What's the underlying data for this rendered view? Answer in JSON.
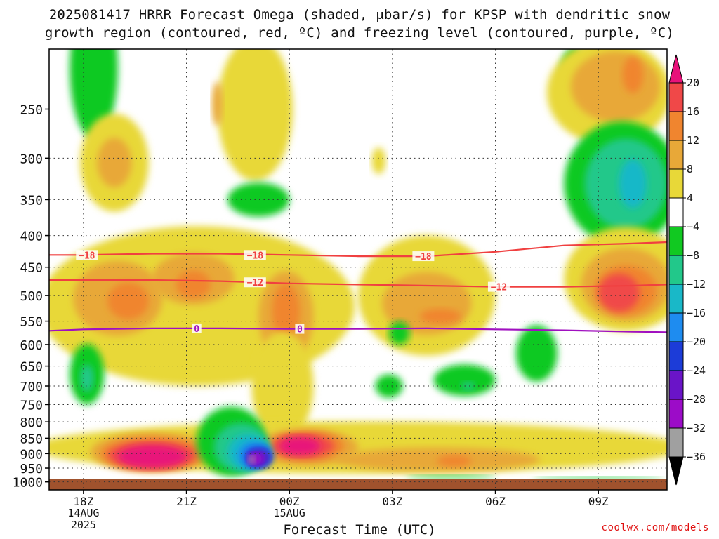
{
  "header": {
    "title_line1": "2025081417 HRRR Forecast Omega (shaded, μbar/s) for KPSP with dendritic snow",
    "title_line2": "growth region (contoured, red, ºC) and freezing level (contoured, purple, ºC)"
  },
  "footer": {
    "credit": "coolwx.com/models"
  },
  "chart_data": {
    "type": "heatmap",
    "title": "2025081417 HRRR Forecast Omega (shaded, μbar/s) for KPSP with dendritic snow growth region (contoured, red, ºC) and freezing level (contoured, purple, ºC)",
    "xlabel": "Forecast Time (UTC)",
    "ylabel": "",
    "x_ticks": [
      {
        "hour": 18,
        "label": "18Z",
        "date": "14AUG",
        "year": "2025"
      },
      {
        "hour": 21,
        "label": "21Z"
      },
      {
        "hour": 24,
        "label": "00Z",
        "date": "15AUG"
      },
      {
        "hour": 27,
        "label": "03Z"
      },
      {
        "hour": 30,
        "label": "06Z"
      },
      {
        "hour": 33,
        "label": "09Z"
      }
    ],
    "xlim": [
      17,
      35
    ],
    "y_ticks": [
      250,
      300,
      350,
      400,
      450,
      500,
      550,
      600,
      650,
      700,
      750,
      800,
      850,
      900,
      950,
      1000
    ],
    "ylim": [
      1030,
      200
    ],
    "y_scale": "log",
    "grid": true,
    "colorbar": {
      "levels": [
        -36,
        -32,
        -28,
        -24,
        -20,
        -16,
        -12,
        -8,
        -4,
        4,
        8,
        12,
        16,
        20
      ],
      "labels": [
        "20",
        "16",
        "12",
        "8",
        "4",
        "−4",
        "−8",
        "−12",
        "−16",
        "−20",
        "−24",
        "−28",
        "−32",
        "−36"
      ],
      "colors": {
        "above_20": "#e8127a",
        "16_20": "#f04848",
        "12_16": "#f0852f",
        "8_12": "#e8a838",
        "4_8": "#e8d838",
        "m4_4": "#ffffff",
        "m8_m4": "#11c921",
        "m12_m8": "#22c88a",
        "m16_m12": "#19b8c8",
        "m20_m16": "#1e8cf0",
        "m24_m20": "#1c3cd8",
        "m28_m24": "#6a14c8",
        "m32_m28": "#9c0cc8",
        "m36_m32": "#a0a0a0",
        "below_m36": "#000000"
      }
    },
    "omega_features": [
      {
        "level": "m8_m4",
        "hour": 18.3,
        "p": 215,
        "rh": 0.7,
        "rp": 55
      },
      {
        "level": "4_8",
        "hour": 18.9,
        "p": 305,
        "rh": 1.0,
        "rp": 55
      },
      {
        "level": "8_12",
        "hour": 18.9,
        "p": 305,
        "rh": 0.5,
        "rp": 28
      },
      {
        "level": "4_8",
        "hour": 23.0,
        "p": 250,
        "rh": 1.1,
        "rp": 65
      },
      {
        "level": "8_12",
        "hour": 21.9,
        "p": 245,
        "rh": 0.15,
        "rp": 20
      },
      {
        "level": "m8_m4",
        "hour": 23.1,
        "p": 350,
        "rh": 0.9,
        "rp": 22
      },
      {
        "level": "m8_m4",
        "hour": 32.3,
        "p": 218,
        "rh": 0.4,
        "rp": 20
      },
      {
        "level": "4_8",
        "hour": 33.3,
        "p": 235,
        "rh": 1.8,
        "rp": 45
      },
      {
        "level": "8_12",
        "hour": 33.5,
        "p": 230,
        "rh": 1.3,
        "rp": 30
      },
      {
        "level": "12_16",
        "hour": 34.0,
        "p": 220,
        "rh": 0.3,
        "rp": 15
      },
      {
        "level": "m8_m4",
        "hour": 33.7,
        "p": 330,
        "rh": 1.7,
        "rp": 75
      },
      {
        "level": "m12_m8",
        "hour": 33.8,
        "p": 330,
        "rh": 1.2,
        "rp": 55
      },
      {
        "level": "m16_m12",
        "hour": 34.0,
        "p": 330,
        "rh": 0.4,
        "rp": 30
      },
      {
        "level": "4_8",
        "hour": 26.6,
        "p": 303,
        "rh": 0.2,
        "rp": 15
      },
      {
        "level": "4_8",
        "hour": 21.3,
        "p": 520,
        "rh": 4.6,
        "rp": 150
      },
      {
        "level": "8_12",
        "hour": 19.0,
        "p": 505,
        "rh": 1.3,
        "rp": 70
      },
      {
        "level": "12_16",
        "hour": 19.3,
        "p": 510,
        "rh": 0.6,
        "rp": 35
      },
      {
        "level": "8_12",
        "hour": 21.2,
        "p": 470,
        "rh": 1.2,
        "rp": 45
      },
      {
        "level": "12_16",
        "hour": 21.2,
        "p": 480,
        "rh": 0.5,
        "rp": 25
      },
      {
        "level": "8_12",
        "hour": 23.9,
        "p": 540,
        "rh": 0.8,
        "rp": 90
      },
      {
        "level": "12_16",
        "hour": 23.9,
        "p": 530,
        "rh": 0.4,
        "rp": 55
      },
      {
        "level": "4_8",
        "hour": 28.0,
        "p": 500,
        "rh": 2.0,
        "rp": 110
      },
      {
        "level": "8_12",
        "hour": 28.0,
        "p": 515,
        "rh": 1.3,
        "rp": 60
      },
      {
        "level": "12_16",
        "hour": 28.4,
        "p": 540,
        "rh": 0.6,
        "rp": 15
      },
      {
        "level": "4_8",
        "hour": 33.8,
        "p": 470,
        "rh": 1.8,
        "rp": 90
      },
      {
        "level": "8_12",
        "hour": 33.8,
        "p": 480,
        "rh": 1.3,
        "rp": 65
      },
      {
        "level": "12_16",
        "hour": 33.8,
        "p": 490,
        "rh": 0.9,
        "rp": 45
      },
      {
        "level": "16_20",
        "hour": 33.6,
        "p": 495,
        "rh": 0.6,
        "rp": 35
      },
      {
        "level": "m8_m4",
        "hour": 27.2,
        "p": 575,
        "rh": 0.3,
        "rp": 25
      },
      {
        "level": "m8_m4",
        "hour": 26.9,
        "p": 700,
        "rh": 0.4,
        "rp": 30
      },
      {
        "level": "m8_m4",
        "hour": 29.1,
        "p": 685,
        "rh": 0.9,
        "rp": 40
      },
      {
        "level": "m12_m8",
        "hour": 29.2,
        "p": 700,
        "rh": 0.2,
        "rp": 10
      },
      {
        "level": "m8_m4",
        "hour": 31.2,
        "p": 620,
        "rh": 0.6,
        "rp": 65
      },
      {
        "level": "m8_m4",
        "hour": 18.1,
        "p": 670,
        "rh": 0.5,
        "rp": 75
      },
      {
        "level": "m12_m8",
        "hour": 18.1,
        "p": 680,
        "rh": 0.2,
        "rp": 35
      },
      {
        "level": "4_8",
        "hour": 23.8,
        "p": 700,
        "rh": 0.9,
        "rp": 140
      },
      {
        "level": "4_8",
        "hour": 26.0,
        "p": 880,
        "rh": 9.5,
        "rp": 85
      },
      {
        "level": "8_12",
        "hour": 20.0,
        "p": 895,
        "rh": 1.8,
        "rp": 65
      },
      {
        "level": "12_16",
        "hour": 20.0,
        "p": 900,
        "rh": 1.5,
        "rp": 55
      },
      {
        "level": "16_20",
        "hour": 20.0,
        "p": 905,
        "rh": 1.3,
        "rp": 45
      },
      {
        "level": "above_20",
        "hour": 20.0,
        "p": 910,
        "rh": 1.0,
        "rp": 38
      },
      {
        "level": "8_12",
        "hour": 24.5,
        "p": 880,
        "rh": 1.5,
        "rp": 60
      },
      {
        "level": "12_16",
        "hour": 24.5,
        "p": 875,
        "rh": 1.1,
        "rp": 48
      },
      {
        "level": "16_20",
        "hour": 24.4,
        "p": 875,
        "rh": 0.9,
        "rp": 38
      },
      {
        "level": "above_20",
        "hour": 24.3,
        "p": 875,
        "rh": 0.6,
        "rp": 30
      },
      {
        "level": "8_12",
        "hour": 28.3,
        "p": 920,
        "rh": 3.0,
        "rp": 40
      },
      {
        "level": "12_16",
        "hour": 28.8,
        "p": 925,
        "rh": 0.5,
        "rp": 20
      },
      {
        "level": "m8_m4",
        "hour": 22.3,
        "p": 860,
        "rh": 1.0,
        "rp": 110
      },
      {
        "level": "m12_m8",
        "hour": 22.6,
        "p": 880,
        "rh": 0.8,
        "rp": 80
      },
      {
        "level": "m16_m12",
        "hour": 22.8,
        "p": 895,
        "rh": 0.6,
        "rp": 60
      },
      {
        "level": "m20_m16",
        "hour": 23.0,
        "p": 905,
        "rh": 0.5,
        "rp": 45
      },
      {
        "level": "m24_m20",
        "hour": 23.1,
        "p": 912,
        "rh": 0.4,
        "rp": 35
      },
      {
        "level": "m28_m24",
        "hour": 23.1,
        "p": 915,
        "rh": 0.3,
        "rp": 27
      },
      {
        "level": "m32_m28",
        "hour": 23.0,
        "p": 918,
        "rh": 0.2,
        "rp": 20
      },
      {
        "level": "m36_m32",
        "hour": 22.9,
        "p": 920,
        "rh": 0.1,
        "rp": 12
      },
      {
        "level": "m8_m4",
        "hour": 28.7,
        "p": 980,
        "rh": 1.3,
        "rp": 6
      },
      {
        "level": "m8_m4",
        "hour": 33.0,
        "p": 985,
        "rh": 1.9,
        "rp": 5
      }
    ],
    "contours": [
      {
        "name": "dendritic",
        "color": "#f04040",
        "label": "−18",
        "x": [
          17,
          18,
          20,
          22,
          24,
          26,
          28,
          30,
          32,
          34,
          35
        ],
        "p": [
          430,
          430,
          428,
          428,
          430,
          432,
          432,
          425,
          415,
          412,
          410
        ]
      },
      {
        "name": "dendritic",
        "color": "#f04040",
        "label": "−12",
        "x": [
          17,
          18,
          20,
          22,
          24,
          26,
          28,
          30,
          32,
          34,
          35
        ],
        "p": [
          472,
          472,
          472,
          474,
          478,
          480,
          482,
          484,
          484,
          482,
          480
        ]
      },
      {
        "name": "freezing_level",
        "color": "#a010c0",
        "label": "0",
        "x": [
          17,
          18,
          20,
          22,
          24,
          26,
          28,
          30,
          32,
          34,
          35
        ],
        "p": [
          570,
          567,
          565,
          565,
          566,
          566,
          565,
          567,
          569,
          572,
          573
        ]
      }
    ],
    "contour_labels": [
      {
        "text": "−18",
        "hour": 18.1,
        "p": 430,
        "color": "#f04040"
      },
      {
        "text": "−18",
        "hour": 23.0,
        "p": 430,
        "color": "#f04040"
      },
      {
        "text": "−18",
        "hour": 27.9,
        "p": 432,
        "color": "#f04040"
      },
      {
        "text": "−12",
        "hour": 23.0,
        "p": 476,
        "color": "#f04040"
      },
      {
        "text": "−12",
        "hour": 30.1,
        "p": 484,
        "color": "#f04040"
      },
      {
        "text": "0",
        "hour": 21.3,
        "p": 565,
        "color": "#a010c0"
      },
      {
        "text": "0",
        "hour": 24.3,
        "p": 566,
        "color": "#a010c0"
      }
    ]
  }
}
